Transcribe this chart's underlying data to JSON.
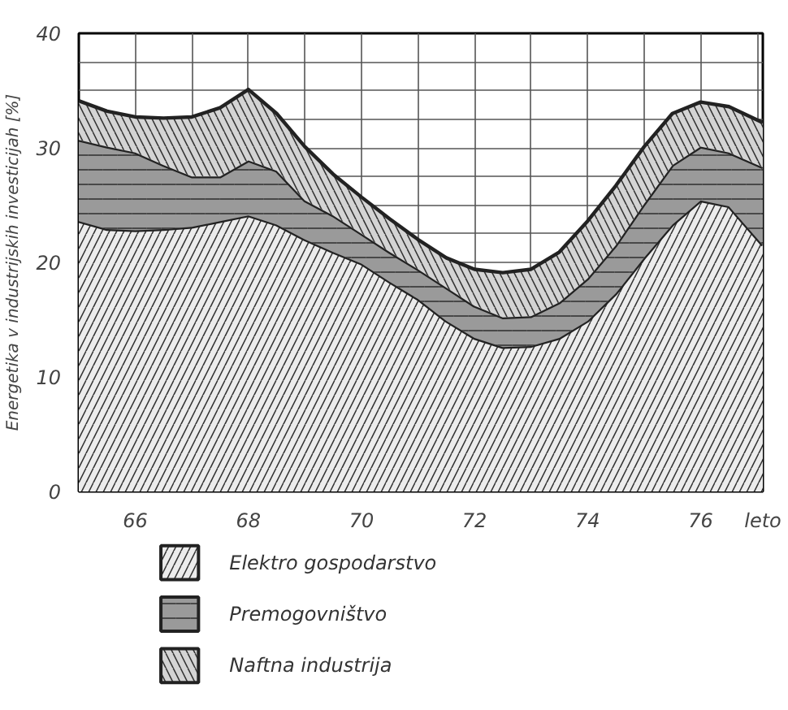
{
  "chart_data": {
    "type": "area",
    "stacked": true,
    "x": [
      65,
      65.5,
      66,
      66.5,
      67,
      67.5,
      68,
      68.5,
      69,
      69.5,
      70,
      70.5,
      71,
      71.5,
      72,
      72.5,
      73,
      73.5,
      74,
      74.5,
      75,
      75.5,
      76,
      76.5,
      77.1
    ],
    "series": [
      {
        "name": "Elektro gospodarstvo",
        "color": "#ececec",
        "values": [
          23.6,
          22.9,
          22.8,
          22.9,
          23.1,
          23.6,
          24.1,
          23.3,
          22.0,
          20.9,
          19.9,
          18.3,
          16.8,
          14.9,
          13.4,
          12.6,
          12.7,
          13.4,
          14.9,
          17.3,
          20.4,
          23.3,
          25.4,
          24.9,
          21.5
        ]
      },
      {
        "name": "Premogovništvo",
        "color": "#9a9a9a",
        "values": [
          7.1,
          7.2,
          6.8,
          5.6,
          4.4,
          3.9,
          4.8,
          4.7,
          3.4,
          3.2,
          2.6,
          2.6,
          2.6,
          2.9,
          2.8,
          2.6,
          2.6,
          3.1,
          3.7,
          4.2,
          4.7,
          5.2,
          4.7,
          4.7,
          6.8
        ]
      },
      {
        "name": "Naftna industrija",
        "color": "#d4d4d4",
        "values": [
          3.4,
          3.1,
          3.1,
          4.1,
          5.2,
          6.0,
          6.2,
          5.0,
          4.7,
          3.6,
          3.2,
          2.9,
          2.6,
          2.6,
          3.2,
          3.9,
          4.1,
          4.4,
          5.0,
          5.2,
          5.0,
          4.5,
          3.9,
          4.0,
          3.9
        ]
      }
    ],
    "xlabel": "leto",
    "ylabel": "Energetika v industrijskih investicijah [%]",
    "xlim": [
      65,
      77.1
    ],
    "ylim": [
      0,
      40
    ],
    "xticks": [
      {
        "value": 65,
        "label": null
      },
      66,
      {
        "value": 67,
        "label": null
      },
      68,
      {
        "value": 69,
        "label": null
      },
      70,
      {
        "value": 71,
        "label": null
      },
      72,
      {
        "value": 73,
        "label": null
      },
      74,
      {
        "value": 75,
        "label": null
      },
      76,
      {
        "value": 77,
        "label": null
      }
    ],
    "yticks": [
      0,
      {
        "value": 2.5,
        "label": null
      },
      {
        "value": 5,
        "label": null
      },
      {
        "value": 7.5,
        "label": null
      },
      10,
      {
        "value": 12.5,
        "label": null
      },
      {
        "value": 15,
        "label": null
      },
      {
        "value": 17.5,
        "label": null
      },
      20,
      {
        "value": 22.5,
        "label": null
      },
      {
        "value": 25,
        "label": null
      },
      {
        "value": 27.5,
        "label": null
      },
      30,
      {
        "value": 32.5,
        "label": null
      },
      {
        "value": 35,
        "label": null
      },
      {
        "value": 37.5,
        "label": null
      },
      40
    ],
    "grid": true,
    "legend": "bottom"
  }
}
